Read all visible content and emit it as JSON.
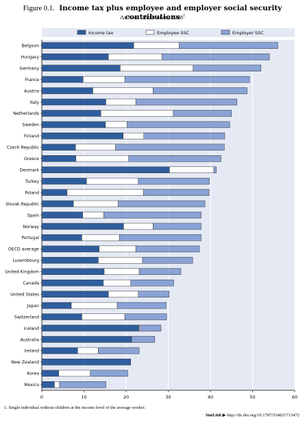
{
  "header": {
    "figure_label": "Figure 0.1.",
    "title": "Income tax plus employee and employer social security contributions",
    "subtitle": "As % of labour costs, 2008",
    "subtitle_note": "1"
  },
  "footer": {
    "footnote": "1. Single individual without children at the income level of the average worker.",
    "statlink_label": "StatLink",
    "statlink_url": "http://dx.doi.org/10.1787/554021713472"
  },
  "chart_data": {
    "type": "bar",
    "orientation": "horizontal",
    "stacked": true,
    "categories": [
      "Belgium",
      "Hungary",
      "Germany",
      "France",
      "Austria",
      "Italy",
      "Netherlands",
      "Sweden",
      "Finland",
      "Czech Republic",
      "Greece",
      "Denmark",
      "Turkey",
      "Poland",
      "Slovak Republic",
      "Spain",
      "Norway",
      "Portugal",
      "OECD average",
      "Luxembourg",
      "United Kingdom",
      "Canada",
      "United States",
      "Japan",
      "Switzerland",
      "Iceland",
      "Australia",
      "Ireland",
      "New Zealand",
      "Korea",
      "Mexico"
    ],
    "series": [
      {
        "name": "Income tax",
        "color": "#2f5e9e",
        "values": [
          21.8,
          15.8,
          18.6,
          9.8,
          12.1,
          15.2,
          14.0,
          15.1,
          19.3,
          8.0,
          8.1,
          30.3,
          10.6,
          6.0,
          7.5,
          9.7,
          19.4,
          9.5,
          13.6,
          13.4,
          14.8,
          14.6,
          15.8,
          7.0,
          9.5,
          23.1,
          21.3,
          8.5,
          21.1,
          4.0,
          3.0
        ]
      },
      {
        "name": "Employee SSC",
        "color": "#ffffff",
        "values": [
          10.8,
          12.7,
          17.3,
          9.9,
          14.3,
          7.1,
          17.2,
          5.1,
          4.9,
          9.5,
          12.5,
          10.5,
          12.3,
          18.1,
          10.6,
          5.0,
          7.0,
          8.9,
          8.7,
          10.5,
          8.3,
          6.5,
          7.1,
          10.9,
          10.2,
          0.3,
          0.0,
          4.9,
          0.0,
          7.5,
          1.2
        ]
      },
      {
        "name": "Employer SSC",
        "color": "#8aa3d6",
        "values": [
          23.4,
          25.5,
          16.1,
          29.6,
          22.3,
          24.0,
          13.8,
          24.4,
          19.2,
          25.8,
          21.9,
          0.6,
          16.9,
          15.6,
          20.6,
          23.1,
          11.4,
          19.4,
          15.1,
          11.9,
          9.9,
          10.2,
          7.3,
          11.6,
          9.9,
          4.9,
          5.5,
          9.7,
          0.0,
          8.9,
          11.0
        ]
      }
    ],
    "xlim": [
      0,
      60
    ],
    "xticks": [
      0,
      10,
      20,
      30,
      40,
      50,
      60
    ],
    "legend_position": "top",
    "grid": true
  }
}
